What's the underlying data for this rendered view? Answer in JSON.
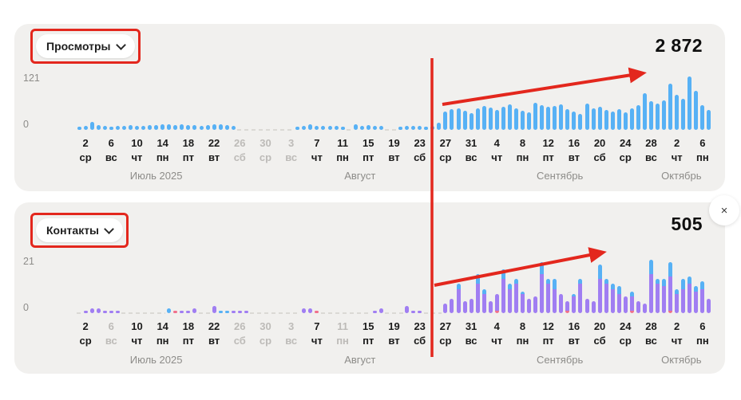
{
  "annotation": {
    "color": "#e3271d",
    "highlight_line": "vertical red line between Aug 26 and Aug 27",
    "trend": "up"
  },
  "close_button": {
    "glyph": "×"
  },
  "axis": {
    "tick_days": [
      "2",
      "6",
      "10",
      "14",
      "18",
      "22",
      "26",
      "30",
      "3",
      "7",
      "11",
      "15",
      "19",
      "23",
      "27",
      "31",
      "4",
      "8",
      "12",
      "16",
      "20",
      "24",
      "28",
      "2",
      "6"
    ],
    "tick_weekdays": [
      "ср",
      "вс",
      "чт",
      "пн",
      "пт",
      "вт",
      "сб",
      "ср",
      "вс",
      "чт",
      "пн",
      "пт",
      "вт",
      "сб",
      "ср",
      "вс",
      "чт",
      "пн",
      "пт",
      "вт",
      "сб",
      "ср",
      "вс",
      "чт",
      "пн"
    ],
    "months": [
      {
        "label": "Июль 2025",
        "day": 12.5
      },
      {
        "label": "Август",
        "day": 44.2
      },
      {
        "label": "Сентябрь",
        "day": 75.3
      },
      {
        "label": "Октябрь",
        "day": 94.2
      }
    ]
  },
  "chart_data": [
    {
      "type": "bar",
      "name": "views",
      "label": "Просмотры",
      "total": "2 872",
      "y_max_label": "121",
      "y_zero_label": "0",
      "ylim": [
        0,
        135
      ],
      "bar_color": "#57b1f5",
      "gray_ticks": [
        6,
        7,
        8
      ],
      "values": [
        8,
        9,
        20,
        11,
        9,
        8,
        9,
        10,
        11,
        10,
        10,
        11,
        12,
        13,
        13,
        12,
        14,
        12,
        11,
        10,
        12,
        13,
        14,
        11,
        9,
        0,
        0,
        0,
        0,
        0,
        0,
        0,
        0,
        0,
        8,
        9,
        14,
        10,
        9,
        9,
        10,
        8,
        0,
        14,
        10,
        11,
        10,
        9,
        0,
        0,
        8,
        9,
        10,
        9,
        8,
        9,
        18,
        44,
        50,
        52,
        46,
        40,
        52,
        58,
        54,
        48,
        56,
        62,
        52,
        46,
        42,
        66,
        60,
        55,
        58,
        62,
        50,
        44,
        38,
        64,
        52,
        56,
        48,
        45,
        50,
        42,
        52,
        60,
        88,
        70,
        64,
        72,
        112,
        85,
        75,
        128,
        95,
        60,
        48
      ]
    },
    {
      "type": "stacked_bar",
      "name": "contacts",
      "label": "Контакты",
      "total": "505",
      "y_max_label": "21",
      "y_zero_label": "0",
      "ylim": [
        0,
        25
      ],
      "colors": {
        "purple": "#a07ef2",
        "blue": "#57b1f5",
        "pink": "#f0708c"
      },
      "gray_ticks": [
        1,
        6,
        7,
        8,
        10
      ],
      "stacks": {
        "purple": [
          0,
          1,
          2,
          2,
          1,
          1,
          1,
          0,
          0,
          0,
          0,
          0,
          0,
          0,
          0,
          0,
          1,
          1,
          2,
          0,
          0,
          3,
          0,
          0,
          1,
          1,
          1,
          0,
          0,
          0,
          0,
          0,
          0,
          0,
          0,
          2,
          2,
          0,
          0,
          0,
          0,
          0,
          0,
          0,
          0,
          0,
          1,
          2,
          0,
          0,
          0,
          3,
          1,
          1,
          0,
          0,
          0,
          4,
          6,
          10,
          5,
          6,
          12,
          8,
          5,
          7,
          14,
          10,
          12,
          8,
          6,
          7,
          16,
          12,
          10,
          8,
          4,
          7,
          12,
          6,
          5,
          14,
          12,
          10,
          8,
          7,
          6,
          5,
          4,
          16,
          12,
          11,
          14,
          8,
          10,
          12,
          9,
          10,
          6
        ],
        "blue": [
          0,
          0,
          0,
          0,
          0,
          0,
          0,
          0,
          0,
          0,
          0,
          0,
          0,
          0,
          2,
          0,
          0,
          0,
          0,
          0,
          0,
          0,
          1,
          1,
          0,
          0,
          0,
          0,
          0,
          0,
          0,
          0,
          0,
          0,
          0,
          0,
          0,
          0,
          0,
          0,
          0,
          0,
          0,
          0,
          0,
          0,
          0,
          0,
          0,
          0,
          0,
          0,
          0,
          0,
          0,
          0,
          0,
          0,
          0,
          2,
          0,
          0,
          4,
          2,
          0,
          0,
          4,
          2,
          2,
          1,
          0,
          0,
          5,
          2,
          4,
          0,
          0,
          1,
          2,
          0,
          0,
          6,
          2,
          2,
          3,
          0,
          2,
          0,
          0,
          6,
          2,
          3,
          6,
          2,
          4,
          3,
          2,
          3,
          0
        ],
        "pink": [
          0,
          0,
          0,
          0,
          0,
          0,
          0,
          0,
          0,
          0,
          0,
          0,
          0,
          0,
          0,
          1,
          0,
          0,
          0,
          0,
          0,
          0,
          0,
          0,
          0,
          0,
          0,
          0,
          0,
          0,
          0,
          0,
          0,
          0,
          0,
          0,
          0,
          1,
          0,
          0,
          0,
          0,
          0,
          0,
          0,
          0,
          0,
          0,
          0,
          0,
          0,
          0,
          0,
          0,
          0,
          0,
          0,
          0,
          0,
          0,
          0,
          0,
          0,
          0,
          0,
          1,
          0,
          0,
          0,
          0,
          0,
          0,
          0,
          0,
          0,
          0,
          1,
          0,
          0,
          0,
          0,
          0,
          0,
          0,
          0,
          0,
          1,
          0,
          0,
          0,
          0,
          0,
          1,
          0,
          0,
          0,
          0,
          0,
          0
        ]
      }
    }
  ]
}
